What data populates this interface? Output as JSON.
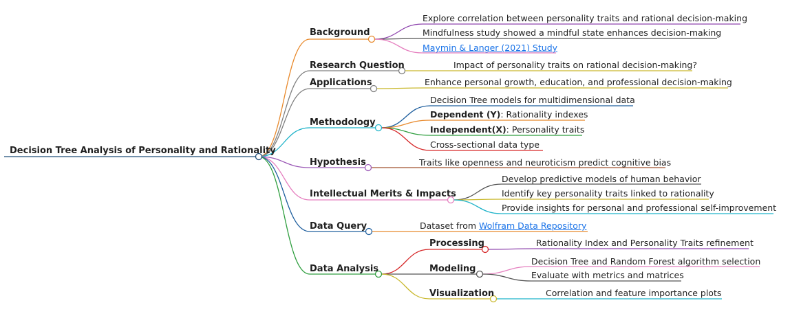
{
  "root": "Decision Tree Analysis of Personality and Rationality",
  "colors": {
    "background": "#ffffff",
    "text": "#1f1f1f",
    "link": "#1a73e8",
    "root_line": "#1f4e79",
    "background_branch": "#e8892b",
    "research_branch": "#7f7f7f",
    "applications_branch": "#7f7f7f",
    "methodology_branch": "#1fb3c9",
    "hypothesis_branch": "#9b59b6",
    "merits_branch": "#e57fbf",
    "dataquery_branch": "#1f5f9e",
    "dataanalysis_branch": "#2e9e3e"
  },
  "branches": {
    "background": {
      "label": "Background",
      "items": {
        "b1": "Explore correlation between personality traits and rational decision-making",
        "b2": "Mindfulness study showed a mindful state enhances decision-making",
        "b3": "Maymin & Langer (2021) Study"
      }
    },
    "research": {
      "label": "Research Question",
      "items": {
        "r1": "Impact of personality traits on rational decision-making?"
      }
    },
    "applications": {
      "label": "Applications",
      "items": {
        "a1": "Enhance personal growth, education, and professional decision-making"
      }
    },
    "methodology": {
      "label": "Methodology",
      "items": {
        "m1": "Decision Tree models for multidimensional data",
        "m2_bold": "Dependent (Y)",
        "m2_rest": ": Rationality indexes",
        "m3_bold": "Independent(X)",
        "m3_rest": ": Personality traits",
        "m4": "Cross-sectional data type"
      }
    },
    "hypothesis": {
      "label": "Hypothesis",
      "items": {
        "h1": "Traits like openness and neuroticism predict cognitive bias"
      }
    },
    "merits": {
      "label": "Intellectual Merits & Impacts",
      "items": {
        "i1": "Develop predictive models of human behavior",
        "i2": "Identify key personality traits linked to rationality",
        "i3": "Provide insights for personal and professional self-improvement"
      }
    },
    "dataquery": {
      "label": "Data Query",
      "items": {
        "q1_prefix": "Dataset from ",
        "q1_link": "Wolfram Data Repository"
      }
    },
    "dataanalysis": {
      "label": "Data Analysis",
      "processing": {
        "label": "Processing",
        "items": {
          "p1": "Rationality Index and Personality Traits refinement"
        }
      },
      "modeling": {
        "label": "Modeling",
        "items": {
          "md1": "Decision Tree and Random Forest algorithm selection",
          "md2": "Evaluate with metrics and matrices"
        }
      },
      "visualization": {
        "label": "Visualization",
        "items": {
          "v1": "Correlation and feature importance plots"
        }
      }
    }
  }
}
